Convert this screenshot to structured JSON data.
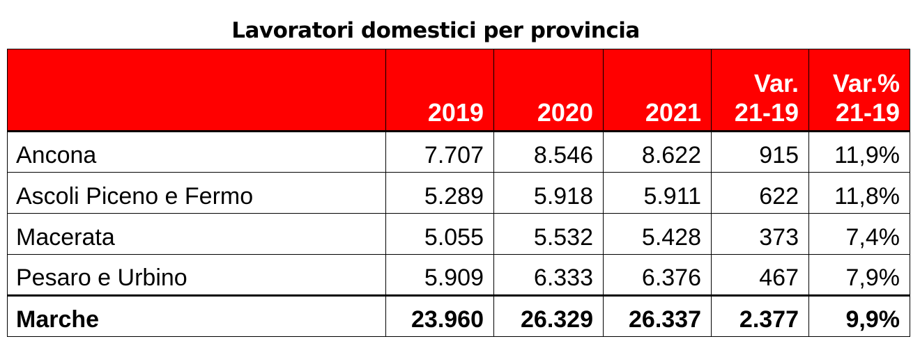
{
  "title": "Lavoratori domestici per provincia",
  "colors": {
    "header_bg": "#ff0000",
    "header_text": "#ffffff"
  },
  "headers": [
    "",
    "2019",
    "2020",
    "2021",
    "Var. 21-19",
    "Var.% 21-19"
  ],
  "header_lines": {
    "var": [
      "Var.",
      "21-19"
    ],
    "varp": [
      "Var.%",
      "21-19"
    ]
  },
  "rows": [
    {
      "name": "Ancona",
      "y2019": "7.707",
      "y2020": "8.546",
      "y2021": "8.622",
      "var": "915",
      "varp": "11,9%"
    },
    {
      "name": "Ascoli Piceno e Fermo",
      "y2019": "5.289",
      "y2020": "5.918",
      "y2021": "5.911",
      "var": "622",
      "varp": "11,8%"
    },
    {
      "name": "Macerata",
      "y2019": "5.055",
      "y2020": "5.532",
      "y2021": "5.428",
      "var": "373",
      "varp": "7,4%"
    },
    {
      "name": "Pesaro e Urbino",
      "y2019": "5.909",
      "y2020": "6.333",
      "y2021": "6.376",
      "var": "467",
      "varp": "7,9%"
    }
  ],
  "total": {
    "name": "Marche",
    "y2019": "23.960",
    "y2020": "26.329",
    "y2021": "26.337",
    "var": "2.377",
    "varp": "9,9%"
  }
}
